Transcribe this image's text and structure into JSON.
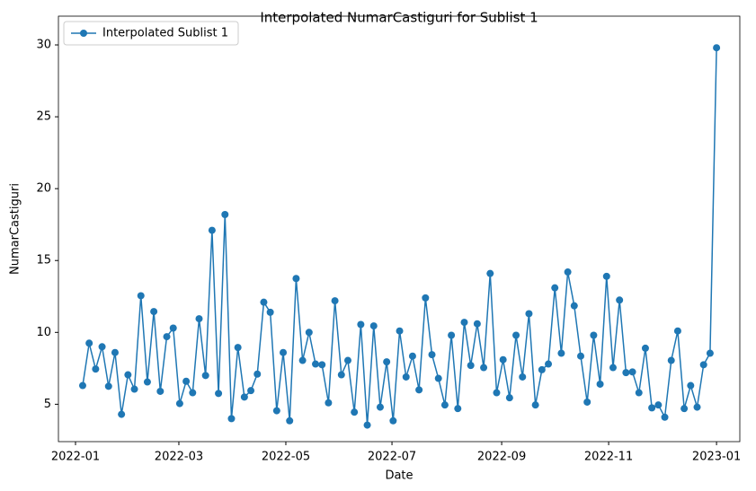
{
  "chart_data": {
    "type": "line",
    "title": "Interpolated NumarCastiguri for Sublist 1",
    "x_label": "Date",
    "y_label": "NumarCastiguri",
    "series": [
      {
        "name": "Interpolated Sublist 1",
        "color": "#1f77b4",
        "values": [
          6.3,
          9.25,
          7.45,
          9.0,
          6.25,
          8.6,
          4.3,
          7.05,
          6.05,
          12.55,
          6.55,
          11.45,
          5.9,
          9.7,
          10.3,
          5.05,
          6.6,
          5.8,
          10.95,
          7.0,
          17.1,
          5.75,
          18.2,
          4.0,
          8.95,
          5.5,
          5.95,
          7.1,
          12.1,
          11.4,
          4.55,
          8.6,
          3.85,
          13.75,
          8.05,
          10.0,
          7.8,
          7.75,
          5.1,
          12.2,
          7.05,
          8.05,
          4.45,
          10.55,
          3.55,
          10.45,
          4.8,
          7.95,
          3.85,
          10.1,
          6.9,
          8.35,
          6.0,
          12.4,
          8.45,
          6.8,
          4.95,
          9.8,
          4.7,
          10.7,
          7.7,
          10.6,
          7.55,
          14.1,
          5.8,
          8.1,
          5.45,
          9.8,
          6.9,
          11.3,
          4.95,
          7.4,
          7.8,
          13.1,
          8.55,
          14.2,
          11.85,
          8.35,
          5.15,
          9.8,
          6.4,
          13.9,
          7.55,
          12.25,
          7.2,
          7.25,
          5.8,
          8.9,
          4.75,
          4.95,
          4.1,
          8.05,
          10.1,
          4.7,
          6.3,
          4.8,
          7.75,
          8.55,
          29.8
        ]
      }
    ],
    "xlim": [
      -3.75,
      101.6
    ],
    "xticks": [
      {
        "value": -1.11,
        "label": "2022-01"
      },
      {
        "value": 14.87,
        "label": "2022-03"
      },
      {
        "value": 31.41,
        "label": "2022-05"
      },
      {
        "value": 47.82,
        "label": "2022-07"
      },
      {
        "value": 64.78,
        "label": "2022-09"
      },
      {
        "value": 81.32,
        "label": "2022-11"
      },
      {
        "value": 98,
        "label": "2023-01"
      }
    ],
    "ylim": [
      2.4,
      32
    ],
    "yticks": [
      5,
      10,
      15,
      20,
      25,
      30
    ],
    "legend": "upper left",
    "grid": false
  }
}
